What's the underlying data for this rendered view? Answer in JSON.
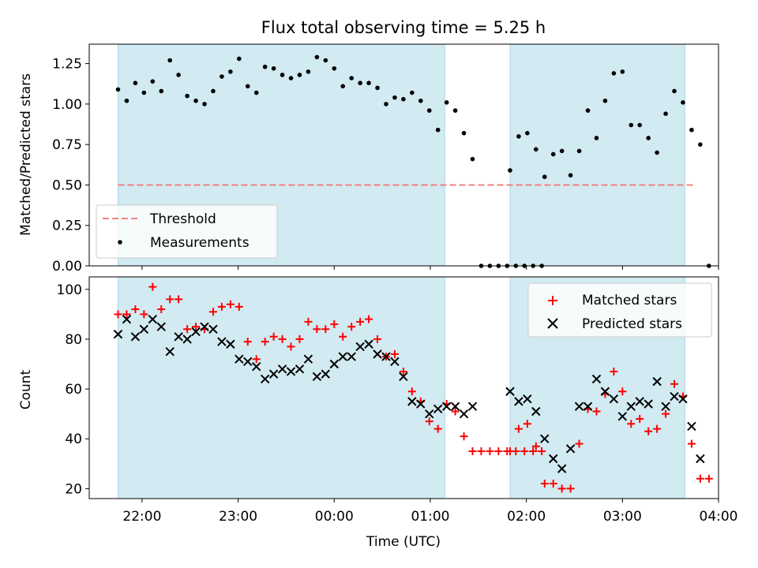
{
  "chart_data": [
    {
      "type": "scatter",
      "title": "Flux total observing time = 5.25 h",
      "ylabel": "Matched/Predicted stars",
      "xlabel": "",
      "x_unit": "hours (UTC, 24 = 00:00 next day)",
      "xlim": [
        21.45,
        28.0
      ],
      "ylim": [
        0,
        1.37
      ],
      "yticks": [
        "0.00",
        "0.25",
        "0.50",
        "0.75",
        "1.00",
        "1.25"
      ],
      "ytick_values": [
        0,
        0.25,
        0.5,
        0.75,
        1.0,
        1.25
      ],
      "xticks_shown": false,
      "shaded_intervals": [
        [
          21.75,
          25.15
        ],
        [
          25.83,
          27.65
        ]
      ],
      "shade_color": "#add8e6",
      "threshold": {
        "name": "Threshold",
        "value": 0.5,
        "x_range": [
          21.75,
          27.75
        ],
        "color": "#f08080",
        "style": "dashed"
      },
      "series": [
        {
          "name": "Measurements",
          "color": "#000000",
          "marker": "dot",
          "points": [
            [
              21.75,
              1.09
            ],
            [
              21.84,
              1.02
            ],
            [
              21.93,
              1.13
            ],
            [
              22.02,
              1.07
            ],
            [
              22.11,
              1.14
            ],
            [
              22.2,
              1.08
            ],
            [
              22.29,
              1.27
            ],
            [
              22.38,
              1.18
            ],
            [
              22.47,
              1.05
            ],
            [
              22.56,
              1.02
            ],
            [
              22.65,
              1.0
            ],
            [
              22.74,
              1.08
            ],
            [
              22.83,
              1.17
            ],
            [
              22.92,
              1.2
            ],
            [
              23.01,
              1.28
            ],
            [
              23.1,
              1.11
            ],
            [
              23.19,
              1.07
            ],
            [
              23.28,
              1.23
            ],
            [
              23.37,
              1.22
            ],
            [
              23.46,
              1.18
            ],
            [
              23.55,
              1.16
            ],
            [
              23.64,
              1.18
            ],
            [
              23.73,
              1.2
            ],
            [
              23.82,
              1.29
            ],
            [
              23.91,
              1.27
            ],
            [
              24.0,
              1.22
            ],
            [
              24.09,
              1.11
            ],
            [
              24.18,
              1.16
            ],
            [
              24.27,
              1.13
            ],
            [
              24.36,
              1.13
            ],
            [
              24.45,
              1.1
            ],
            [
              24.54,
              1.0
            ],
            [
              24.63,
              1.04
            ],
            [
              24.72,
              1.03
            ],
            [
              24.81,
              1.07
            ],
            [
              24.9,
              1.02
            ],
            [
              24.99,
              0.96
            ],
            [
              25.08,
              0.84
            ],
            [
              25.17,
              1.01
            ],
            [
              25.26,
              0.96
            ],
            [
              25.35,
              0.82
            ],
            [
              25.44,
              0.66
            ],
            [
              25.53,
              0.0
            ],
            [
              25.62,
              0.0
            ],
            [
              25.71,
              0.0
            ],
            [
              25.8,
              0.0
            ],
            [
              25.89,
              0.0
            ],
            [
              25.98,
              0.0
            ],
            [
              26.07,
              0.0
            ],
            [
              26.16,
              0.0
            ],
            [
              25.83,
              0.59
            ],
            [
              25.92,
              0.8
            ],
            [
              26.01,
              0.82
            ],
            [
              26.1,
              0.72
            ],
            [
              26.19,
              0.55
            ],
            [
              26.28,
              0.69
            ],
            [
              26.37,
              0.71
            ],
            [
              26.46,
              0.56
            ],
            [
              26.55,
              0.71
            ],
            [
              26.64,
              0.96
            ],
            [
              26.73,
              0.79
            ],
            [
              26.82,
              1.02
            ],
            [
              26.91,
              1.19
            ],
            [
              27.0,
              1.2
            ],
            [
              27.09,
              0.87
            ],
            [
              27.18,
              0.87
            ],
            [
              27.27,
              0.79
            ],
            [
              27.36,
              0.7
            ],
            [
              27.45,
              0.94
            ],
            [
              27.54,
              1.08
            ],
            [
              27.63,
              1.01
            ],
            [
              27.72,
              0.84
            ],
            [
              27.81,
              0.75
            ],
            [
              27.9,
              0.0
            ]
          ]
        }
      ],
      "legend": {
        "placement": "lower-left",
        "entries": [
          "Threshold",
          "Measurements"
        ]
      }
    },
    {
      "type": "scatter",
      "title": "",
      "ylabel": "Count",
      "xlabel": "Time (UTC)",
      "xlim": [
        21.45,
        28.0
      ],
      "ylim": [
        16,
        105
      ],
      "yticks": [
        "20",
        "40",
        "60",
        "80",
        "100"
      ],
      "ytick_values": [
        20,
        40,
        60,
        80,
        100
      ],
      "xticks": [
        "22:00",
        "23:00",
        "00:00",
        "01:00",
        "02:00",
        "03:00",
        "04:00"
      ],
      "xtick_values": [
        22,
        23,
        24,
        25,
        26,
        27,
        28
      ],
      "shaded_intervals": [
        [
          21.75,
          25.15
        ],
        [
          25.83,
          27.65
        ]
      ],
      "shade_color": "#add8e6",
      "series": [
        {
          "name": "Matched stars",
          "color": "#ff0000",
          "marker": "plus",
          "points": [
            [
              21.75,
              90
            ],
            [
              21.84,
              90
            ],
            [
              21.93,
              92
            ],
            [
              22.02,
              90
            ],
            [
              22.11,
              101
            ],
            [
              22.2,
              92
            ],
            [
              22.29,
              96
            ],
            [
              22.38,
              96
            ],
            [
              22.47,
              84
            ],
            [
              22.56,
              85
            ],
            [
              22.65,
              84
            ],
            [
              22.74,
              91
            ],
            [
              22.83,
              93
            ],
            [
              22.92,
              94
            ],
            [
              23.01,
              93
            ],
            [
              23.1,
              79
            ],
            [
              23.19,
              72
            ],
            [
              23.28,
              79
            ],
            [
              23.37,
              81
            ],
            [
              23.46,
              80
            ],
            [
              23.55,
              77
            ],
            [
              23.64,
              80
            ],
            [
              23.73,
              87
            ],
            [
              23.82,
              84
            ],
            [
              23.91,
              84
            ],
            [
              24.0,
              86
            ],
            [
              24.09,
              81
            ],
            [
              24.18,
              85
            ],
            [
              24.27,
              87
            ],
            [
              24.36,
              88
            ],
            [
              24.45,
              80
            ],
            [
              24.54,
              73
            ],
            [
              24.63,
              74
            ],
            [
              24.72,
              67
            ],
            [
              24.81,
              59
            ],
            [
              24.9,
              55
            ],
            [
              24.99,
              47
            ],
            [
              25.08,
              44
            ],
            [
              25.17,
              54
            ],
            [
              25.26,
              51
            ],
            [
              25.35,
              41
            ],
            [
              25.44,
              35
            ],
            [
              25.53,
              35
            ],
            [
              25.62,
              35
            ],
            [
              25.71,
              35
            ],
            [
              25.8,
              35
            ],
            [
              25.89,
              35
            ],
            [
              25.98,
              35
            ],
            [
              26.07,
              35
            ],
            [
              26.16,
              35
            ],
            [
              25.83,
              35
            ],
            [
              25.92,
              44
            ],
            [
              26.01,
              46
            ],
            [
              26.1,
              37
            ],
            [
              26.19,
              22
            ],
            [
              26.28,
              22
            ],
            [
              26.37,
              20
            ],
            [
              26.46,
              20
            ],
            [
              26.55,
              38
            ],
            [
              26.64,
              52
            ],
            [
              26.73,
              51
            ],
            [
              26.82,
              58
            ],
            [
              26.91,
              67
            ],
            [
              27.0,
              59
            ],
            [
              27.09,
              46
            ],
            [
              27.18,
              48
            ],
            [
              27.27,
              43
            ],
            [
              27.36,
              44
            ],
            [
              27.45,
              50
            ],
            [
              27.54,
              62
            ],
            [
              27.63,
              57
            ],
            [
              27.72,
              38
            ],
            [
              27.81,
              24
            ],
            [
              27.9,
              24
            ]
          ]
        },
        {
          "name": "Predicted stars",
          "color": "#000000",
          "marker": "x",
          "points": [
            [
              21.75,
              82
            ],
            [
              21.84,
              88
            ],
            [
              21.93,
              81
            ],
            [
              22.02,
              84
            ],
            [
              22.11,
              88
            ],
            [
              22.2,
              85
            ],
            [
              22.29,
              75
            ],
            [
              22.38,
              81
            ],
            [
              22.47,
              80
            ],
            [
              22.56,
              83
            ],
            [
              22.65,
              85
            ],
            [
              22.74,
              84
            ],
            [
              22.83,
              79
            ],
            [
              22.92,
              78
            ],
            [
              23.01,
              72
            ],
            [
              23.1,
              71
            ],
            [
              23.19,
              69
            ],
            [
              23.28,
              64
            ],
            [
              23.37,
              66
            ],
            [
              23.46,
              68
            ],
            [
              23.55,
              67
            ],
            [
              23.64,
              68
            ],
            [
              23.73,
              72
            ],
            [
              23.82,
              65
            ],
            [
              23.91,
              66
            ],
            [
              24.0,
              70
            ],
            [
              24.09,
              73
            ],
            [
              24.18,
              73
            ],
            [
              24.27,
              77
            ],
            [
              24.36,
              78
            ],
            [
              24.45,
              74
            ],
            [
              24.54,
              73
            ],
            [
              24.63,
              71
            ],
            [
              24.72,
              65
            ],
            [
              24.81,
              55
            ],
            [
              24.9,
              54
            ],
            [
              24.99,
              50
            ],
            [
              25.08,
              52
            ],
            [
              25.17,
              53
            ],
            [
              25.26,
              53
            ],
            [
              25.35,
              50
            ],
            [
              25.44,
              53
            ],
            [
              25.83,
              59
            ],
            [
              25.92,
              55
            ],
            [
              26.01,
              56
            ],
            [
              26.1,
              51
            ],
            [
              26.19,
              40
            ],
            [
              26.28,
              32
            ],
            [
              26.37,
              28
            ],
            [
              26.46,
              36
            ],
            [
              26.55,
              53
            ],
            [
              26.64,
              53
            ],
            [
              26.73,
              64
            ],
            [
              26.82,
              59
            ],
            [
              26.91,
              56
            ],
            [
              27.0,
              49
            ],
            [
              27.09,
              53
            ],
            [
              27.18,
              55
            ],
            [
              27.27,
              54
            ],
            [
              27.36,
              63
            ],
            [
              27.45,
              53
            ],
            [
              27.54,
              57
            ],
            [
              27.63,
              56
            ],
            [
              27.72,
              45
            ],
            [
              27.81,
              32
            ]
          ]
        }
      ],
      "legend": {
        "placement": "upper-right",
        "entries": [
          "Matched stars",
          "Predicted stars"
        ]
      }
    }
  ]
}
